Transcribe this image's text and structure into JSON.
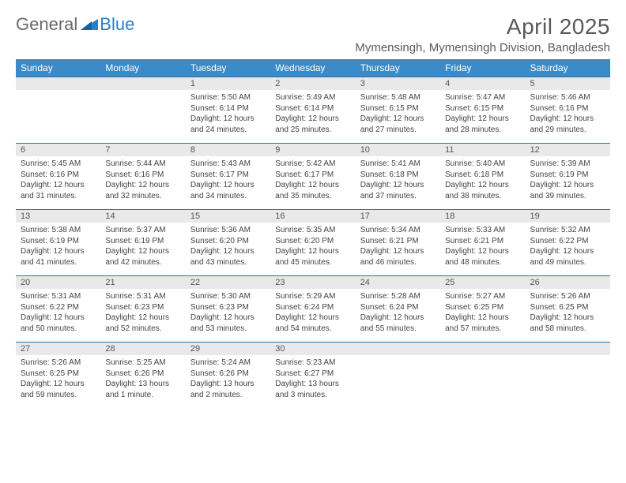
{
  "logo": {
    "text1": "General",
    "text2": "Blue"
  },
  "title": "April 2025",
  "location": "Mymensingh, Mymensingh Division, Bangladesh",
  "colors": {
    "header_bg": "#3b8bc9",
    "header_text": "#ffffff",
    "daynum_bg": "#e9e9e9",
    "border": "#2b6fa8",
    "text": "#444444",
    "title_text": "#5a5a5a"
  },
  "weekdays": [
    "Sunday",
    "Monday",
    "Tuesday",
    "Wednesday",
    "Thursday",
    "Friday",
    "Saturday"
  ],
  "weeks": [
    [
      {
        "blank": true
      },
      {
        "blank": true
      },
      {
        "n": "1",
        "sr": "5:50 AM",
        "ss": "6:14 PM",
        "d": "12 hours and 24 minutes."
      },
      {
        "n": "2",
        "sr": "5:49 AM",
        "ss": "6:14 PM",
        "d": "12 hours and 25 minutes."
      },
      {
        "n": "3",
        "sr": "5:48 AM",
        "ss": "6:15 PM",
        "d": "12 hours and 27 minutes."
      },
      {
        "n": "4",
        "sr": "5:47 AM",
        "ss": "6:15 PM",
        "d": "12 hours and 28 minutes."
      },
      {
        "n": "5",
        "sr": "5:46 AM",
        "ss": "6:16 PM",
        "d": "12 hours and 29 minutes."
      }
    ],
    [
      {
        "n": "6",
        "sr": "5:45 AM",
        "ss": "6:16 PM",
        "d": "12 hours and 31 minutes."
      },
      {
        "n": "7",
        "sr": "5:44 AM",
        "ss": "6:16 PM",
        "d": "12 hours and 32 minutes."
      },
      {
        "n": "8",
        "sr": "5:43 AM",
        "ss": "6:17 PM",
        "d": "12 hours and 34 minutes."
      },
      {
        "n": "9",
        "sr": "5:42 AM",
        "ss": "6:17 PM",
        "d": "12 hours and 35 minutes."
      },
      {
        "n": "10",
        "sr": "5:41 AM",
        "ss": "6:18 PM",
        "d": "12 hours and 37 minutes."
      },
      {
        "n": "11",
        "sr": "5:40 AM",
        "ss": "6:18 PM",
        "d": "12 hours and 38 minutes."
      },
      {
        "n": "12",
        "sr": "5:39 AM",
        "ss": "6:19 PM",
        "d": "12 hours and 39 minutes."
      }
    ],
    [
      {
        "n": "13",
        "sr": "5:38 AM",
        "ss": "6:19 PM",
        "d": "12 hours and 41 minutes."
      },
      {
        "n": "14",
        "sr": "5:37 AM",
        "ss": "6:19 PM",
        "d": "12 hours and 42 minutes."
      },
      {
        "n": "15",
        "sr": "5:36 AM",
        "ss": "6:20 PM",
        "d": "12 hours and 43 minutes."
      },
      {
        "n": "16",
        "sr": "5:35 AM",
        "ss": "6:20 PM",
        "d": "12 hours and 45 minutes."
      },
      {
        "n": "17",
        "sr": "5:34 AM",
        "ss": "6:21 PM",
        "d": "12 hours and 46 minutes."
      },
      {
        "n": "18",
        "sr": "5:33 AM",
        "ss": "6:21 PM",
        "d": "12 hours and 48 minutes."
      },
      {
        "n": "19",
        "sr": "5:32 AM",
        "ss": "6:22 PM",
        "d": "12 hours and 49 minutes."
      }
    ],
    [
      {
        "n": "20",
        "sr": "5:31 AM",
        "ss": "6:22 PM",
        "d": "12 hours and 50 minutes."
      },
      {
        "n": "21",
        "sr": "5:31 AM",
        "ss": "6:23 PM",
        "d": "12 hours and 52 minutes."
      },
      {
        "n": "22",
        "sr": "5:30 AM",
        "ss": "6:23 PM",
        "d": "12 hours and 53 minutes."
      },
      {
        "n": "23",
        "sr": "5:29 AM",
        "ss": "6:24 PM",
        "d": "12 hours and 54 minutes."
      },
      {
        "n": "24",
        "sr": "5:28 AM",
        "ss": "6:24 PM",
        "d": "12 hours and 55 minutes."
      },
      {
        "n": "25",
        "sr": "5:27 AM",
        "ss": "6:25 PM",
        "d": "12 hours and 57 minutes."
      },
      {
        "n": "26",
        "sr": "5:26 AM",
        "ss": "6:25 PM",
        "d": "12 hours and 58 minutes."
      }
    ],
    [
      {
        "n": "27",
        "sr": "5:26 AM",
        "ss": "6:25 PM",
        "d": "12 hours and 59 minutes."
      },
      {
        "n": "28",
        "sr": "5:25 AM",
        "ss": "6:26 PM",
        "d": "13 hours and 1 minute."
      },
      {
        "n": "29",
        "sr": "5:24 AM",
        "ss": "6:26 PM",
        "d": "13 hours and 2 minutes."
      },
      {
        "n": "30",
        "sr": "5:23 AM",
        "ss": "6:27 PM",
        "d": "13 hours and 3 minutes."
      },
      {
        "blank": true
      },
      {
        "blank": true
      },
      {
        "blank": true
      }
    ]
  ],
  "labels": {
    "sunrise": "Sunrise:",
    "sunset": "Sunset:",
    "daylight": "Daylight:"
  }
}
